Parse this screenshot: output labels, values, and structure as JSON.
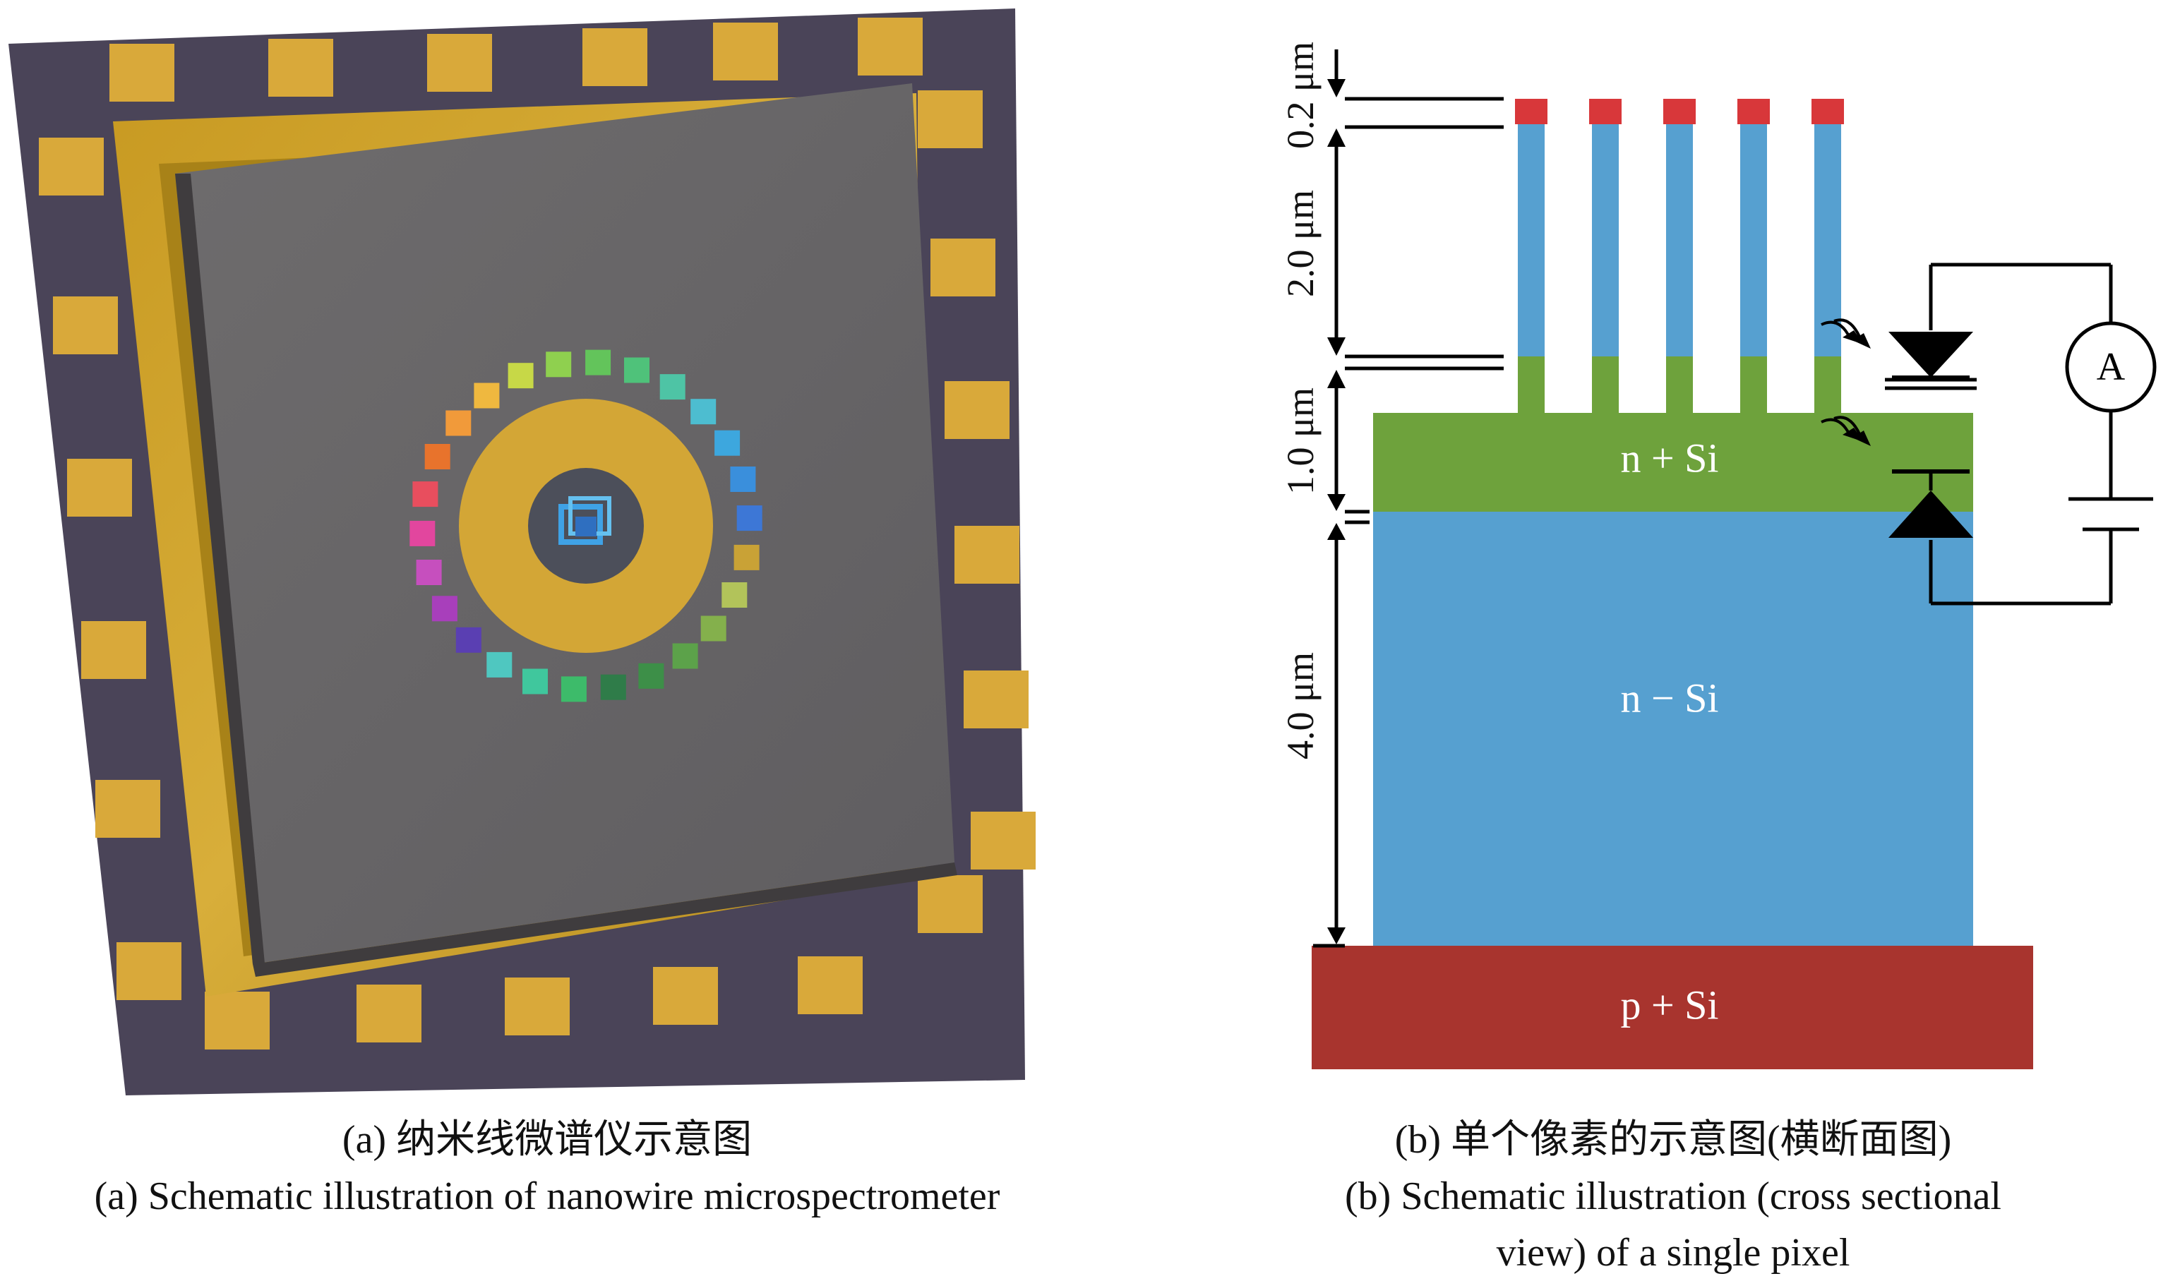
{
  "panel_a": {
    "caption_cn": "(a) 纳米线微谱仪示意图",
    "caption_en": "(a) Schematic illustration of nanowire microspectrometer",
    "colors": {
      "package": "#4a4458",
      "pad": "#d9a93a",
      "gold_frame": "#c9a028",
      "chip": "#6a6869",
      "ring": "#d3a636"
    },
    "filter_colors": [
      "#e8732c",
      "#f19a3a",
      "#efb83f",
      "#c7d847",
      "#8fd04f",
      "#63c45b",
      "#4fc27a",
      "#4ec4a5",
      "#4dbdd0",
      "#3da7de",
      "#3a8fdc",
      "#3d77d6",
      "#c9a236",
      "#b2c35a",
      "#84b04c",
      "#5ca24a",
      "#3d8f48",
      "#2f7c49",
      "#3dbb6a",
      "#40c79d",
      "#4fc7c0",
      "#5a3fb2",
      "#a83fbb",
      "#c64fbe",
      "#e2469e",
      "#e84e5e"
    ]
  },
  "panel_b": {
    "caption_cn": "(b) 单个像素的示意图(横断面图)",
    "caption_en_line1": "(b) Schematic illustration (cross sectional",
    "caption_en_line2": "view) of a single pixel",
    "dimensions": {
      "cap": "0.2 μm",
      "nanowire": "2.0 μm",
      "n_plus": "1.0 μm",
      "n_minus": "4.0 μm"
    },
    "layers": {
      "n_plus": "n + Si",
      "n_minus": "n − Si",
      "p_plus": "p + Si"
    },
    "ammeter": "A",
    "colors": {
      "cap": "#d8373a",
      "blue": "#56a0d0",
      "green": "#6ea23c",
      "substrate": "#a8342e"
    }
  }
}
